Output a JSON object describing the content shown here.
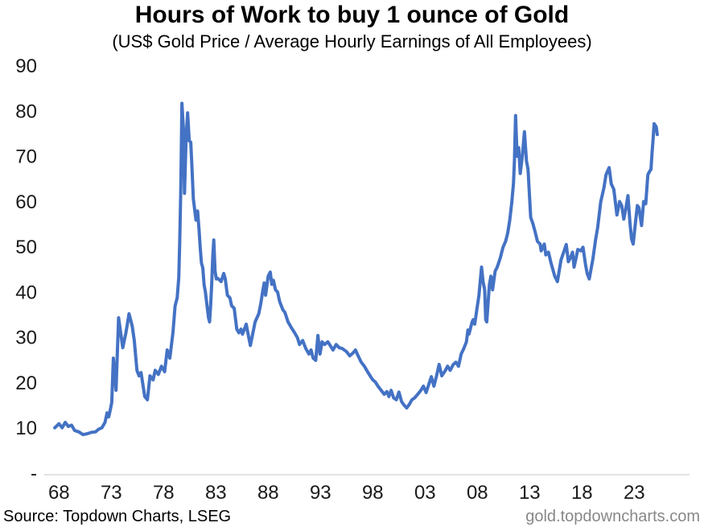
{
  "title": "Hours of Work to buy 1 ounce of Gold",
  "subtitle": "(US$ Gold Price / Average Hourly Earnings of All Employees)",
  "footer": {
    "source": "Source: Topdown Charts, LSEG",
    "watermark": "gold.topdowncharts.com"
  },
  "chart_data": {
    "type": "line",
    "title": "Hours of Work to buy 1 ounce of Gold",
    "subtitle": "(US$ Gold Price / Average Hourly Earnings of All Employees)",
    "xlabel": "",
    "ylabel": "",
    "xlim": [
      1967.5,
      2026.0
    ],
    "ylim": [
      0,
      90
    ],
    "grid": false,
    "legend": "none",
    "axis_line_color": "#d9d9d9",
    "text_color": "#1a1a1a",
    "watermark_color": "#888888",
    "x_ticks": [
      {
        "year": 1968,
        "label": "68"
      },
      {
        "year": 1973,
        "label": "73"
      },
      {
        "year": 1978,
        "label": "78"
      },
      {
        "year": 1983,
        "label": "83"
      },
      {
        "year": 1988,
        "label": "88"
      },
      {
        "year": 1993,
        "label": "93"
      },
      {
        "year": 1998,
        "label": "98"
      },
      {
        "year": 2003,
        "label": "03"
      },
      {
        "year": 2008,
        "label": "08"
      },
      {
        "year": 2013,
        "label": "13"
      },
      {
        "year": 2018,
        "label": "18"
      },
      {
        "year": 2023,
        "label": "23"
      }
    ],
    "y_ticks": [
      {
        "value": 0,
        "label": "-"
      },
      {
        "value": 10,
        "label": "10"
      },
      {
        "value": 20,
        "label": "20"
      },
      {
        "value": 30,
        "label": "30"
      },
      {
        "value": 40,
        "label": "40"
      },
      {
        "value": 50,
        "label": "50"
      },
      {
        "value": 60,
        "label": "60"
      },
      {
        "value": 70,
        "label": "70"
      },
      {
        "value": 80,
        "label": "80"
      },
      {
        "value": 90,
        "label": "90"
      }
    ],
    "series": [
      {
        "name": "Hours of work to buy 1 ounce of gold",
        "color": "#4472C4",
        "line_width": 4,
        "points": [
          [
            1967.6,
            10.0
          ],
          [
            1968.0,
            10.9
          ],
          [
            1968.3,
            10.0
          ],
          [
            1968.6,
            11.2
          ],
          [
            1968.9,
            10.3
          ],
          [
            1969.2,
            10.6
          ],
          [
            1969.5,
            9.4
          ],
          [
            1969.9,
            9.1
          ],
          [
            1970.3,
            8.5
          ],
          [
            1970.7,
            8.7
          ],
          [
            1971.1,
            9.0
          ],
          [
            1971.5,
            9.1
          ],
          [
            1971.8,
            9.7
          ],
          [
            1972.1,
            10.0
          ],
          [
            1972.4,
            11.2
          ],
          [
            1972.6,
            13.3
          ],
          [
            1972.75,
            12.4
          ],
          [
            1972.9,
            13.9
          ],
          [
            1973.05,
            15.6
          ],
          [
            1973.2,
            25.4
          ],
          [
            1973.45,
            18.3
          ],
          [
            1973.7,
            34.3
          ],
          [
            1974.1,
            27.7
          ],
          [
            1974.4,
            31.0
          ],
          [
            1974.7,
            35.2
          ],
          [
            1975.0,
            32.5
          ],
          [
            1975.2,
            29.3
          ],
          [
            1975.45,
            22.7
          ],
          [
            1975.65,
            21.5
          ],
          [
            1975.85,
            22.2
          ],
          [
            1976.2,
            16.9
          ],
          [
            1976.45,
            16.2
          ],
          [
            1976.7,
            21.5
          ],
          [
            1977.0,
            20.6
          ],
          [
            1977.2,
            22.7
          ],
          [
            1977.5,
            21.8
          ],
          [
            1977.8,
            23.6
          ],
          [
            1978.1,
            22.4
          ],
          [
            1978.35,
            27.2
          ],
          [
            1978.6,
            25.4
          ],
          [
            1978.9,
            31.1
          ],
          [
            1979.1,
            36.9
          ],
          [
            1979.3,
            38.7
          ],
          [
            1979.45,
            43.2
          ],
          [
            1979.55,
            51.2
          ],
          [
            1979.65,
            63.6
          ],
          [
            1979.75,
            81.7
          ],
          [
            1979.9,
            76.0
          ],
          [
            1980.0,
            61.8
          ],
          [
            1980.15,
            74.0
          ],
          [
            1980.3,
            79.6
          ],
          [
            1980.45,
            73.4
          ],
          [
            1980.6,
            73.1
          ],
          [
            1980.72,
            67.1
          ],
          [
            1980.85,
            60.6
          ],
          [
            1981.0,
            57.7
          ],
          [
            1981.1,
            55.9
          ],
          [
            1981.25,
            57.9
          ],
          [
            1981.4,
            53.5
          ],
          [
            1981.5,
            49.9
          ],
          [
            1981.62,
            46.4
          ],
          [
            1981.75,
            45.3
          ],
          [
            1981.87,
            41.7
          ],
          [
            1982.0,
            40.0
          ],
          [
            1982.15,
            37.0
          ],
          [
            1982.3,
            34.3
          ],
          [
            1982.4,
            33.4
          ],
          [
            1982.5,
            37.0
          ],
          [
            1982.6,
            41.7
          ],
          [
            1982.7,
            47.6
          ],
          [
            1982.8,
            51.5
          ],
          [
            1982.92,
            44.6
          ],
          [
            1983.05,
            42.9
          ],
          [
            1983.2,
            43.0
          ],
          [
            1983.5,
            42.3
          ],
          [
            1983.75,
            44.1
          ],
          [
            1983.9,
            42.9
          ],
          [
            1984.1,
            39.3
          ],
          [
            1984.35,
            38.7
          ],
          [
            1984.5,
            37.0
          ],
          [
            1984.75,
            36.4
          ],
          [
            1985.0,
            31.8
          ],
          [
            1985.2,
            31.0
          ],
          [
            1985.4,
            31.8
          ],
          [
            1985.55,
            30.7
          ],
          [
            1985.7,
            31.6
          ],
          [
            1985.9,
            32.9
          ],
          [
            1986.1,
            30.5
          ],
          [
            1986.3,
            28.2
          ],
          [
            1986.5,
            30.5
          ],
          [
            1986.75,
            33.4
          ],
          [
            1987.1,
            35.2
          ],
          [
            1987.3,
            37.5
          ],
          [
            1987.5,
            40.5
          ],
          [
            1987.62,
            42.0
          ],
          [
            1987.75,
            39.3
          ],
          [
            1988.0,
            43.5
          ],
          [
            1988.2,
            44.4
          ],
          [
            1988.35,
            41.7
          ],
          [
            1988.5,
            42.6
          ],
          [
            1988.7,
            40.5
          ],
          [
            1988.9,
            40.0
          ],
          [
            1989.1,
            37.9
          ],
          [
            1989.4,
            36.1
          ],
          [
            1989.6,
            35.5
          ],
          [
            1989.9,
            33.4
          ],
          [
            1990.2,
            32.2
          ],
          [
            1990.5,
            31.1
          ],
          [
            1990.8,
            29.9
          ],
          [
            1991.0,
            28.4
          ],
          [
            1991.3,
            29.3
          ],
          [
            1991.6,
            27.5
          ],
          [
            1991.9,
            26.3
          ],
          [
            1992.1,
            27.2
          ],
          [
            1992.3,
            25.4
          ],
          [
            1992.55,
            24.9
          ],
          [
            1992.75,
            30.4
          ],
          [
            1992.95,
            26.3
          ],
          [
            1993.15,
            29.0
          ],
          [
            1993.4,
            28.4
          ],
          [
            1993.7,
            29.0
          ],
          [
            1993.95,
            28.1
          ],
          [
            1994.2,
            27.2
          ],
          [
            1994.5,
            28.4
          ],
          [
            1994.8,
            27.7
          ],
          [
            1995.1,
            27.5
          ],
          [
            1995.5,
            26.8
          ],
          [
            1995.8,
            25.9
          ],
          [
            1996.1,
            26.5
          ],
          [
            1996.35,
            27.2
          ],
          [
            1996.6,
            25.9
          ],
          [
            1996.9,
            24.5
          ],
          [
            1997.2,
            23.6
          ],
          [
            1997.5,
            22.4
          ],
          [
            1997.8,
            21.3
          ],
          [
            1998.0,
            20.6
          ],
          [
            1998.25,
            20.1
          ],
          [
            1998.5,
            19.2
          ],
          [
            1998.8,
            18.3
          ],
          [
            1999.1,
            17.4
          ],
          [
            1999.35,
            18.0
          ],
          [
            1999.55,
            16.9
          ],
          [
            1999.75,
            18.3
          ],
          [
            2000.0,
            16.6
          ],
          [
            2000.25,
            16.2
          ],
          [
            2000.5,
            17.9
          ],
          [
            2000.75,
            15.8
          ],
          [
            2001.0,
            15.0
          ],
          [
            2001.25,
            14.4
          ],
          [
            2001.5,
            15.2
          ],
          [
            2001.75,
            16.2
          ],
          [
            2002.0,
            16.6
          ],
          [
            2002.3,
            17.4
          ],
          [
            2002.6,
            18.3
          ],
          [
            2002.85,
            19.2
          ],
          [
            2003.1,
            17.8
          ],
          [
            2003.35,
            19.5
          ],
          [
            2003.6,
            21.3
          ],
          [
            2003.85,
            19.2
          ],
          [
            2004.1,
            21.5
          ],
          [
            2004.35,
            24.0
          ],
          [
            2004.6,
            21.5
          ],
          [
            2004.9,
            22.5
          ],
          [
            2005.15,
            23.6
          ],
          [
            2005.4,
            22.7
          ],
          [
            2005.7,
            24.0
          ],
          [
            2005.95,
            24.5
          ],
          [
            2006.2,
            23.6
          ],
          [
            2006.45,
            26.3
          ],
          [
            2006.7,
            27.5
          ],
          [
            2006.95,
            29.0
          ],
          [
            2007.1,
            31.6
          ],
          [
            2007.2,
            30.7
          ],
          [
            2007.5,
            33.4
          ],
          [
            2007.6,
            33.9
          ],
          [
            2007.75,
            32.9
          ],
          [
            2008.0,
            36.9
          ],
          [
            2008.15,
            39.3
          ],
          [
            2008.4,
            45.5
          ],
          [
            2008.55,
            42.3
          ],
          [
            2008.7,
            40.5
          ],
          [
            2008.8,
            33.9
          ],
          [
            2008.9,
            33.4
          ],
          [
            2009.15,
            41.7
          ],
          [
            2009.3,
            43.5
          ],
          [
            2009.45,
            40.5
          ],
          [
            2009.7,
            44.6
          ],
          [
            2009.9,
            45.5
          ],
          [
            2010.2,
            47.6
          ],
          [
            2010.45,
            49.9
          ],
          [
            2010.7,
            51.2
          ],
          [
            2010.9,
            53.0
          ],
          [
            2011.1,
            55.9
          ],
          [
            2011.3,
            60.0
          ],
          [
            2011.45,
            64.0
          ],
          [
            2011.55,
            69.0
          ],
          [
            2011.65,
            79.0
          ],
          [
            2011.8,
            70.0
          ],
          [
            2011.95,
            71.9
          ],
          [
            2012.1,
            66.2
          ],
          [
            2012.3,
            70.0
          ],
          [
            2012.5,
            75.4
          ],
          [
            2012.7,
            68.9
          ],
          [
            2012.85,
            67.1
          ],
          [
            2013.1,
            56.5
          ],
          [
            2013.3,
            55.2
          ],
          [
            2013.5,
            53.5
          ],
          [
            2013.75,
            51.2
          ],
          [
            2014.0,
            50.6
          ],
          [
            2014.1,
            49.1
          ],
          [
            2014.4,
            50.6
          ],
          [
            2014.55,
            48.2
          ],
          [
            2014.8,
            48.8
          ],
          [
            2015.05,
            46.4
          ],
          [
            2015.4,
            43.5
          ],
          [
            2015.65,
            42.3
          ],
          [
            2016.0,
            47.1
          ],
          [
            2016.3,
            49.1
          ],
          [
            2016.5,
            50.5
          ],
          [
            2016.7,
            46.7
          ],
          [
            2016.9,
            47.6
          ],
          [
            2017.1,
            48.8
          ],
          [
            2017.25,
            45.5
          ],
          [
            2017.4,
            47.1
          ],
          [
            2017.6,
            49.4
          ],
          [
            2017.9,
            49.1
          ],
          [
            2018.1,
            49.9
          ],
          [
            2018.35,
            46.0
          ],
          [
            2018.5,
            44.1
          ],
          [
            2018.7,
            42.9
          ],
          [
            2019.05,
            47.3
          ],
          [
            2019.3,
            51.5
          ],
          [
            2019.5,
            54.2
          ],
          [
            2019.8,
            60.0
          ],
          [
            2020.1,
            63.0
          ],
          [
            2020.3,
            65.9
          ],
          [
            2020.6,
            67.5
          ],
          [
            2020.8,
            63.9
          ],
          [
            2021.05,
            62.7
          ],
          [
            2021.35,
            57.0
          ],
          [
            2021.6,
            60.0
          ],
          [
            2021.8,
            59.1
          ],
          [
            2022.0,
            56.1
          ],
          [
            2022.2,
            58.5
          ],
          [
            2022.4,
            61.3
          ],
          [
            2022.6,
            55.0
          ],
          [
            2022.75,
            51.7
          ],
          [
            2022.9,
            50.6
          ],
          [
            2023.1,
            55.0
          ],
          [
            2023.3,
            59.1
          ],
          [
            2023.45,
            58.6
          ],
          [
            2023.7,
            54.7
          ],
          [
            2023.9,
            60.0
          ],
          [
            2024.1,
            59.5
          ],
          [
            2024.3,
            65.9
          ],
          [
            2024.45,
            66.6
          ],
          [
            2024.6,
            67.1
          ],
          [
            2024.7,
            70.7
          ],
          [
            2024.8,
            73.7
          ],
          [
            2024.9,
            77.2
          ],
          [
            2025.1,
            76.5
          ],
          [
            2025.2,
            74.8
          ]
        ]
      }
    ]
  }
}
